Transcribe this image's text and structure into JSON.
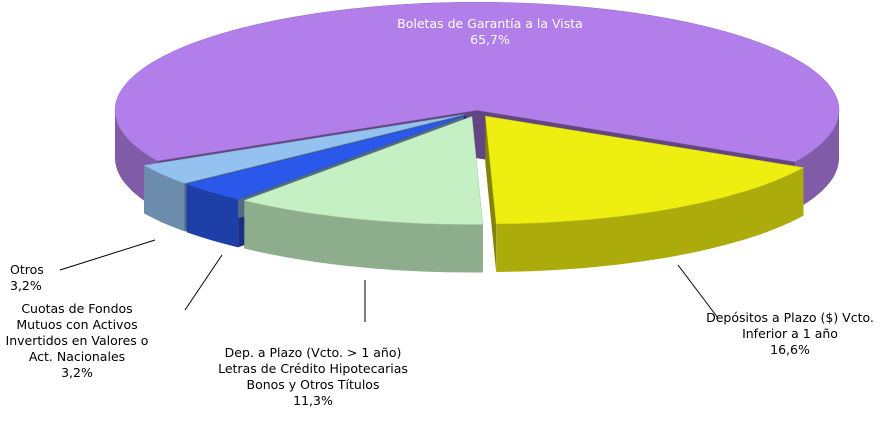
{
  "chart_data": {
    "type": "pie",
    "categories": [
      "Boletas de Garantía a la Vista",
      "Depósitos a Plazo ($) Vcto. Inferior a 1 año",
      "Dep. a Plazo (Vcto. > 1 año) Letras de Crédito Hipotecarias Bonos y Otros Títulos",
      "Cuotas de Fondos Mutuos con Activos Invertidos en Valores o Act. Nacionales",
      "Otros"
    ],
    "values": [
      65.7,
      16.6,
      11.3,
      3.2,
      3.2
    ],
    "value_labels": [
      "65,7%",
      "16,6%",
      "11,3%",
      "3,2%",
      "3,2%"
    ],
    "colors": [
      "#b27fea",
      "#eeee10",
      "#c4f0c4",
      "#2a58ea",
      "#94c2f0"
    ]
  }
}
